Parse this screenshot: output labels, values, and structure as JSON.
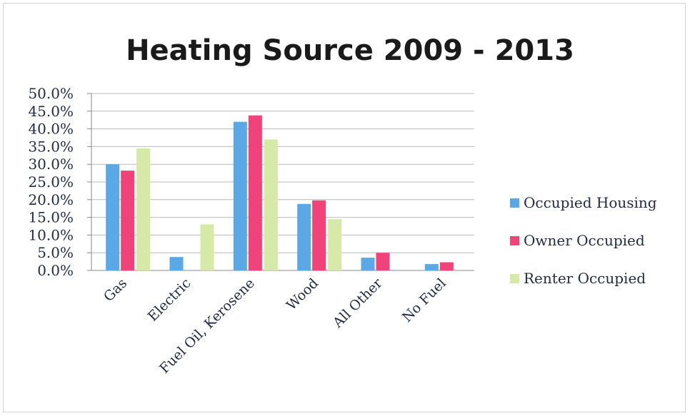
{
  "chart_data": {
    "type": "bar",
    "title": "Heating Source 2009 - 2013",
    "categories": [
      "Gas",
      "Electric",
      "Fuel Oil, Kerosene",
      "Wood",
      "All Other",
      "No Fuel"
    ],
    "series": [
      {
        "name": "Occupied Housing",
        "color": "#5aa9e6",
        "values": [
          30.0,
          3.8,
          42.0,
          18.8,
          3.6,
          1.8
        ]
      },
      {
        "name": "Owner Occupied",
        "color": "#f0437a",
        "values": [
          28.2,
          0.0,
          43.8,
          19.8,
          5.0,
          2.3
        ]
      },
      {
        "name": "Renter Occupied",
        "color": "#d6e9a6",
        "values": [
          34.5,
          13.0,
          37.0,
          14.5,
          0.0,
          0.0
        ]
      }
    ],
    "ylim": [
      0,
      50
    ],
    "yticks": [
      "0.0%",
      "5.0%",
      "10.0%",
      "15.0%",
      "20.0%",
      "25.0%",
      "30.0%",
      "35.0%",
      "40.0%",
      "45.0%",
      "50.0%"
    ],
    "grid": true,
    "legend_position": "right"
  }
}
